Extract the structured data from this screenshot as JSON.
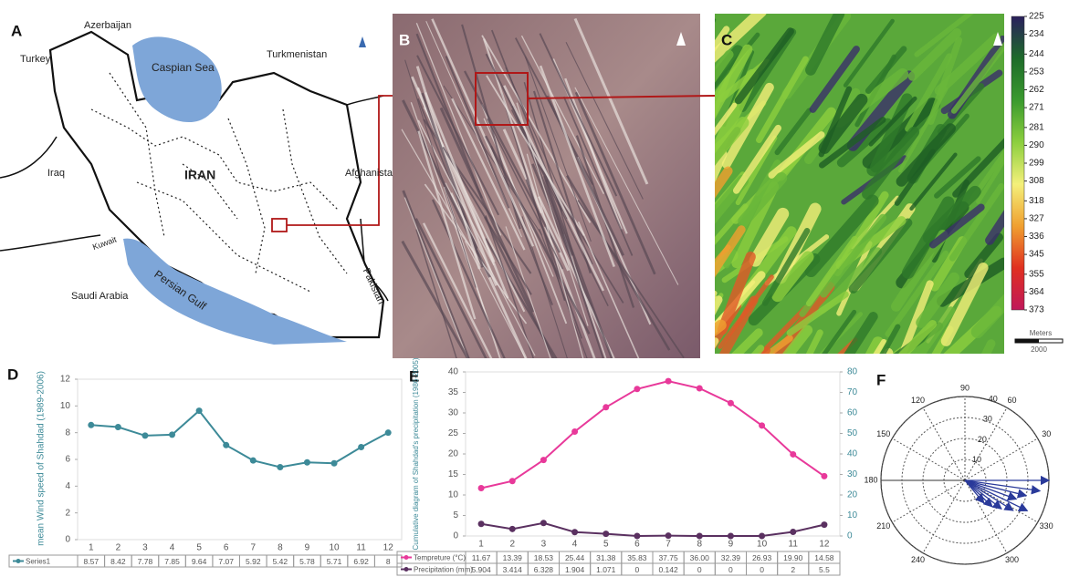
{
  "map": {
    "panel": "A",
    "labels": [
      "Azerbaijan",
      "Turkey",
      "Caspian Sea",
      "Turkmenistan",
      "IRAN",
      "Iraq",
      "Afghanistan",
      "Kuwait",
      "Saudi Arabia",
      "Persian Gulf",
      "Pakistan"
    ]
  },
  "image_panels": [
    "B",
    "C"
  ],
  "chart_data": [
    {
      "type": "colorbar",
      "ylim": [
        373,
        225
      ],
      "yticks": [
        225,
        234,
        244,
        253,
        262,
        271,
        281,
        290,
        299,
        308,
        318,
        327,
        336,
        345,
        355,
        364,
        373
      ],
      "colormap": [
        "#2a1f5c",
        "#1e6b2a",
        "#3a9a2e",
        "#8ccf3e",
        "#f4f07a",
        "#f0a030",
        "#e03020",
        "#c0185a"
      ],
      "scale_label": "Meters",
      "scale_value": 2000
    },
    {
      "type": "line",
      "panel": "D",
      "ylabel": "mean Wind speed of Shahdad (1989-2006)",
      "categories": [
        "1",
        "2",
        "3",
        "4",
        "5",
        "6",
        "7",
        "8",
        "9",
        "10",
        "11",
        "12"
      ],
      "series": [
        {
          "name": "Series1",
          "color": "#3d8a98",
          "values": [
            8.57,
            8.42,
            7.78,
            7.85,
            9.64,
            7.07,
            5.92,
            5.42,
            5.78,
            5.71,
            6.92,
            8
          ]
        }
      ],
      "ylim": [
        0,
        12
      ],
      "yticks": [
        0,
        2,
        4,
        6,
        8,
        10,
        12
      ],
      "grid": false
    },
    {
      "type": "line",
      "panel": "E",
      "y2label": "Cumulative diagram of Shahdad's precipitation (1986-2005)",
      "categories": [
        "1",
        "2",
        "3",
        "4",
        "5",
        "6",
        "7",
        "8",
        "9",
        "10",
        "11",
        "12"
      ],
      "series": [
        {
          "name": "Tempreture (°C)",
          "color": "#e8399a",
          "values": [
            11.67,
            13.39,
            18.53,
            25.44,
            31.38,
            35.83,
            37.75,
            36,
            32.39,
            26.93,
            19.9,
            14.58
          ],
          "value_labels": [
            "11.67",
            "13.39",
            "18.53",
            "25.44",
            "31.38",
            "35.83",
            "37.75",
            "36.00",
            "32.39",
            "26.93",
            "19.90",
            "14.58"
          ]
        },
        {
          "name": "Precipitation (mm)",
          "color": "#5a3060",
          "axis": "y2",
          "values": [
            5.904,
            3.414,
            6.328,
            1.904,
            1.071,
            0,
            0.142,
            0,
            0,
            0,
            2,
            5.5
          ]
        }
      ],
      "ylim": [
        0,
        40
      ],
      "yticks": [
        0,
        5,
        10,
        15,
        20,
        25,
        30,
        35,
        40
      ],
      "y2lim": [
        0,
        80
      ],
      "y2ticks": [
        0,
        10,
        20,
        30,
        40,
        50,
        60,
        70,
        80
      ]
    },
    {
      "type": "polar",
      "panel": "F",
      "rlim": [
        0,
        40
      ],
      "rticks": [
        10,
        20,
        30,
        40
      ],
      "thetaticks": [
        30,
        60,
        90,
        120,
        150,
        180,
        210,
        240,
        300,
        330
      ],
      "color": "#2a3a9a",
      "theta": [
        0,
        352,
        346,
        340,
        334,
        328,
        322,
        316,
        310
      ],
      "r": [
        40,
        36,
        30,
        26,
        33,
        27,
        22,
        18,
        14
      ]
    }
  ]
}
